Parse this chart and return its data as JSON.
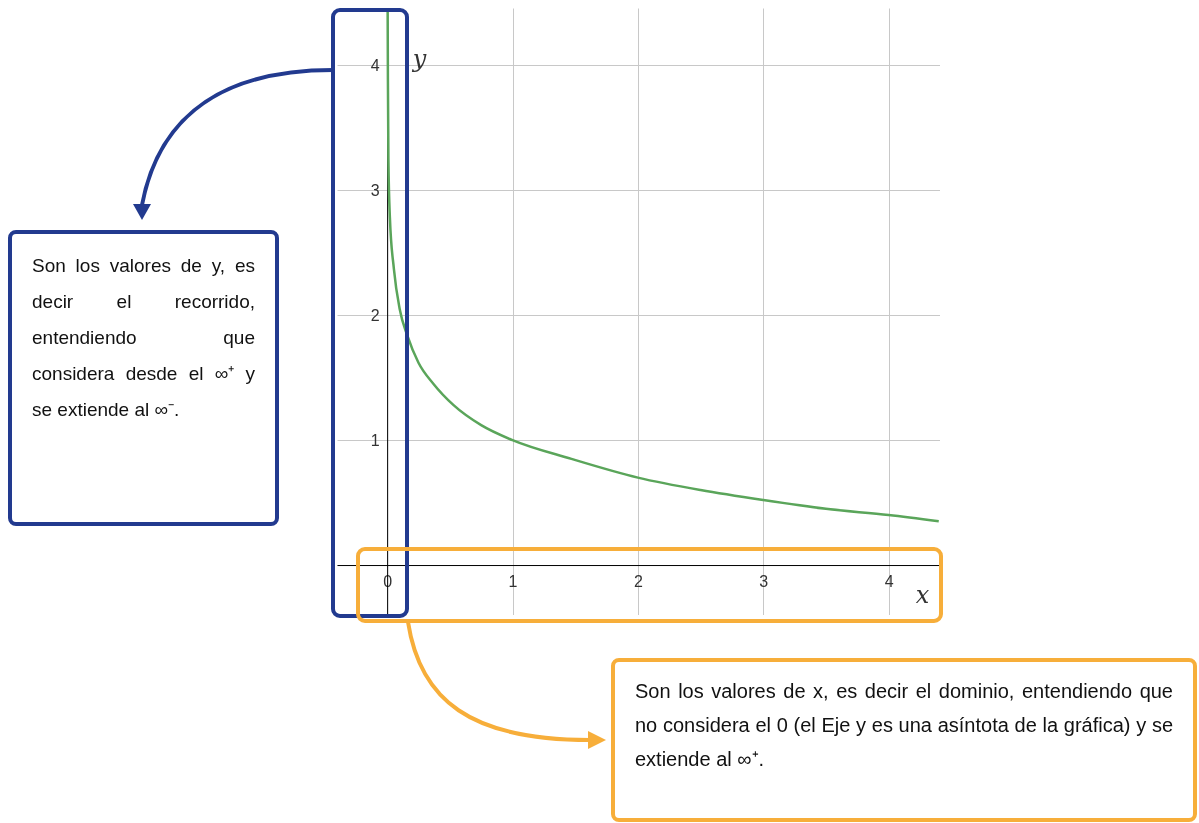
{
  "chart_data": {
    "type": "line",
    "xlabel": "x",
    "ylabel": "y",
    "xlim": [
      -0.4,
      4.41
    ],
    "ylim": [
      -0.4,
      4.46
    ],
    "xticks": [
      0,
      1,
      2,
      3,
      4
    ],
    "yticks": [
      {
        "value": 0,
        "label": null
      },
      1,
      2,
      3,
      4
    ],
    "grid": true,
    "series": [
      {
        "color": "#5aa55a",
        "x": [
          0.004,
          0.006,
          0.01,
          0.022,
          0.054,
          0.1,
          0.16,
          0.25,
          0.37,
          0.53,
          0.75,
          1,
          1.47,
          2,
          2.5,
          3,
          3.5,
          4,
          4.4
        ],
        "values": [
          4.44,
          3.9,
          3.25,
          2.78,
          2.37,
          2.05,
          1.84,
          1.62,
          1.45,
          1.28,
          1.12,
          1.0,
          0.85,
          0.7,
          0.6,
          0.52,
          0.45,
          0.4,
          0.35
        ]
      }
    ],
    "annotations": [
      "Son los valores de y, es decir el recorrido, entendiendo que considera desde el ∞⁺ y se extiende al ∞⁻.",
      "Son los valores de x, es decir el dominio, entendiendo que no considera el 0 (el Eje y es una asíntota de la gráfica) y se extiende al ∞⁺."
    ]
  }
}
